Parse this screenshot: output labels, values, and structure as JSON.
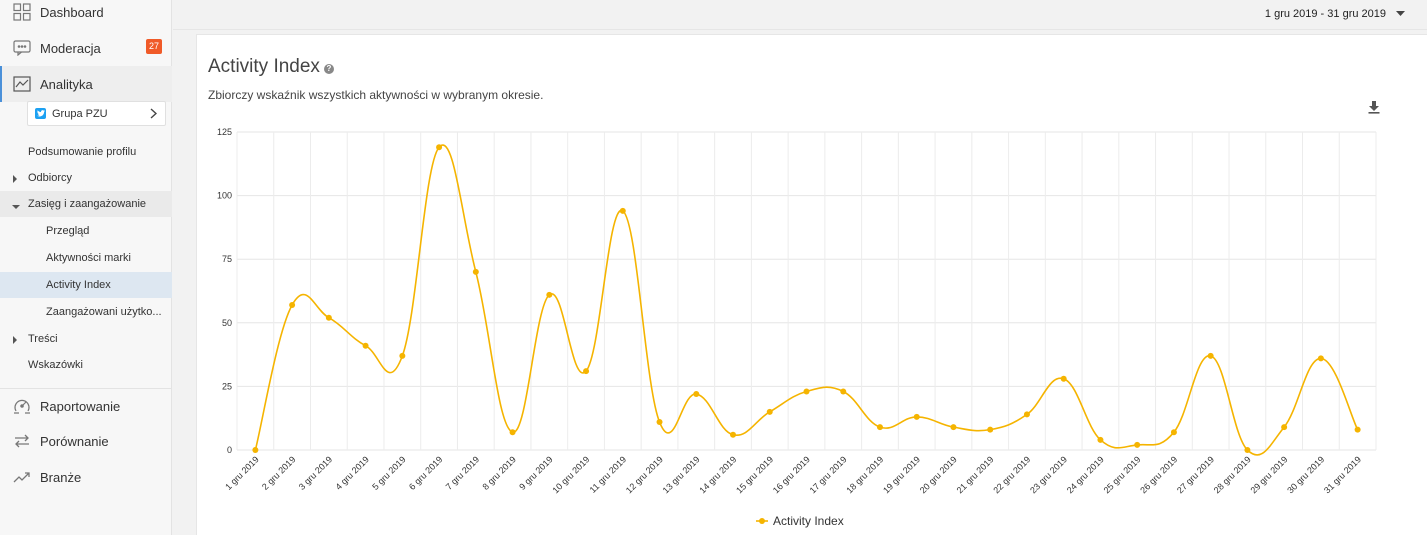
{
  "sidebar": {
    "nav": [
      {
        "label": "Dashboard",
        "icon": "grid-icon"
      },
      {
        "label": "Moderacja",
        "icon": "chat-icon",
        "badge": "27"
      },
      {
        "label": "Analityka",
        "icon": "chart-icon"
      }
    ],
    "profile": {
      "label": "Grupa PZU",
      "icon": "twitter-icon"
    },
    "sub": [
      {
        "label": "Podsumowanie profilu"
      },
      {
        "label": "Odbiorcy"
      },
      {
        "label": "Zasięg i zaangażowanie"
      },
      {
        "label": "Przegląd"
      },
      {
        "label": "Aktywności marki"
      },
      {
        "label": "Activity Index"
      },
      {
        "label": "Zaangażowani użytko..."
      },
      {
        "label": "Treści"
      },
      {
        "label": "Wskazówki"
      }
    ],
    "nav_bottom": [
      {
        "label": "Raportowanie",
        "icon": "report-icon"
      },
      {
        "label": "Porównanie",
        "icon": "compare-icon"
      },
      {
        "label": "Branże",
        "icon": "trend-icon"
      }
    ]
  },
  "topbar": {
    "date_range": "1 gru 2019 - 31 gru 2019"
  },
  "card": {
    "title": "Activity Index",
    "subtitle": "Zbiorczy wskaźnik wszystkich aktywności w wybranym okresie."
  },
  "colors": {
    "series": "#f5b400",
    "accent": "#4a90d9",
    "badge": "#f05a28"
  },
  "chart_data": {
    "type": "line",
    "categories": [
      "1 gru 2019",
      "2 gru 2019",
      "3 gru 2019",
      "4 gru 2019",
      "5 gru 2019",
      "6 gru 2019",
      "7 gru 2019",
      "8 gru 2019",
      "9 gru 2019",
      "10 gru 2019",
      "11 gru 2019",
      "12 gru 2019",
      "13 gru 2019",
      "14 gru 2019",
      "15 gru 2019",
      "16 gru 2019",
      "17 gru 2019",
      "18 gru 2019",
      "19 gru 2019",
      "20 gru 2019",
      "21 gru 2019",
      "22 gru 2019",
      "23 gru 2019",
      "24 gru 2019",
      "25 gru 2019",
      "26 gru 2019",
      "27 gru 2019",
      "28 gru 2019",
      "29 gru 2019",
      "30 gru 2019",
      "31 gru 2019"
    ],
    "series": [
      {
        "name": "Activity Index",
        "values": [
          0,
          57,
          52,
          41,
          37,
          119,
          70,
          7,
          61,
          31,
          94,
          11,
          22,
          6,
          15,
          23,
          23,
          9,
          13,
          9,
          8,
          14,
          28,
          4,
          2,
          7,
          37,
          0,
          9,
          36,
          8
        ]
      }
    ],
    "ylim": [
      0,
      125
    ],
    "yticks": [
      0,
      25,
      50,
      75,
      100,
      125
    ],
    "grid": true,
    "legend": "bottom-center"
  }
}
